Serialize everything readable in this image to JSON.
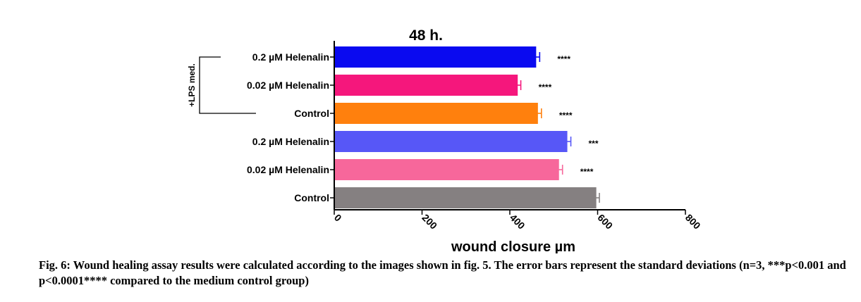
{
  "chart_data": {
    "type": "bar",
    "orientation": "horizontal",
    "title": "48 h.",
    "xlabel": "wound closure µm",
    "xlim": [
      0,
      800
    ],
    "xticks": [
      "0",
      "200",
      "400",
      "600",
      "800"
    ],
    "group_label": "+LPS med.",
    "bars": [
      {
        "category": "0.2 µM Helenalin",
        "value": 460,
        "error": 8,
        "significance": "****",
        "color": "#0a0af0",
        "group": "+LPS med."
      },
      {
        "category": "0.02 µM Helenalin",
        "value": 418,
        "error": 7,
        "significance": "****",
        "color": "#f5177c",
        "group": "+LPS med."
      },
      {
        "category": "Control",
        "value": 464,
        "error": 8,
        "significance": "****",
        "color": "#ff800d",
        "group": "+LPS med."
      },
      {
        "category": "0.2 µM Helenalin",
        "value": 531,
        "error": 8,
        "significance": "***",
        "color": "#5757f7",
        "group": ""
      },
      {
        "category": "0.02 µM Helenalin",
        "value": 512,
        "error": 8,
        "significance": "****",
        "color": "#f7679b",
        "group": ""
      },
      {
        "category": "Control",
        "value": 597,
        "error": 7,
        "significance": "",
        "color": "#858081",
        "group": ""
      }
    ]
  },
  "caption": "Fig. 6: Wound healing assay results were calculated according to the images shown in fig. 5. The error bars represent the standard deviations (n=3, ***p<0.001 and p<0.0001**** compared to the medium control group)"
}
